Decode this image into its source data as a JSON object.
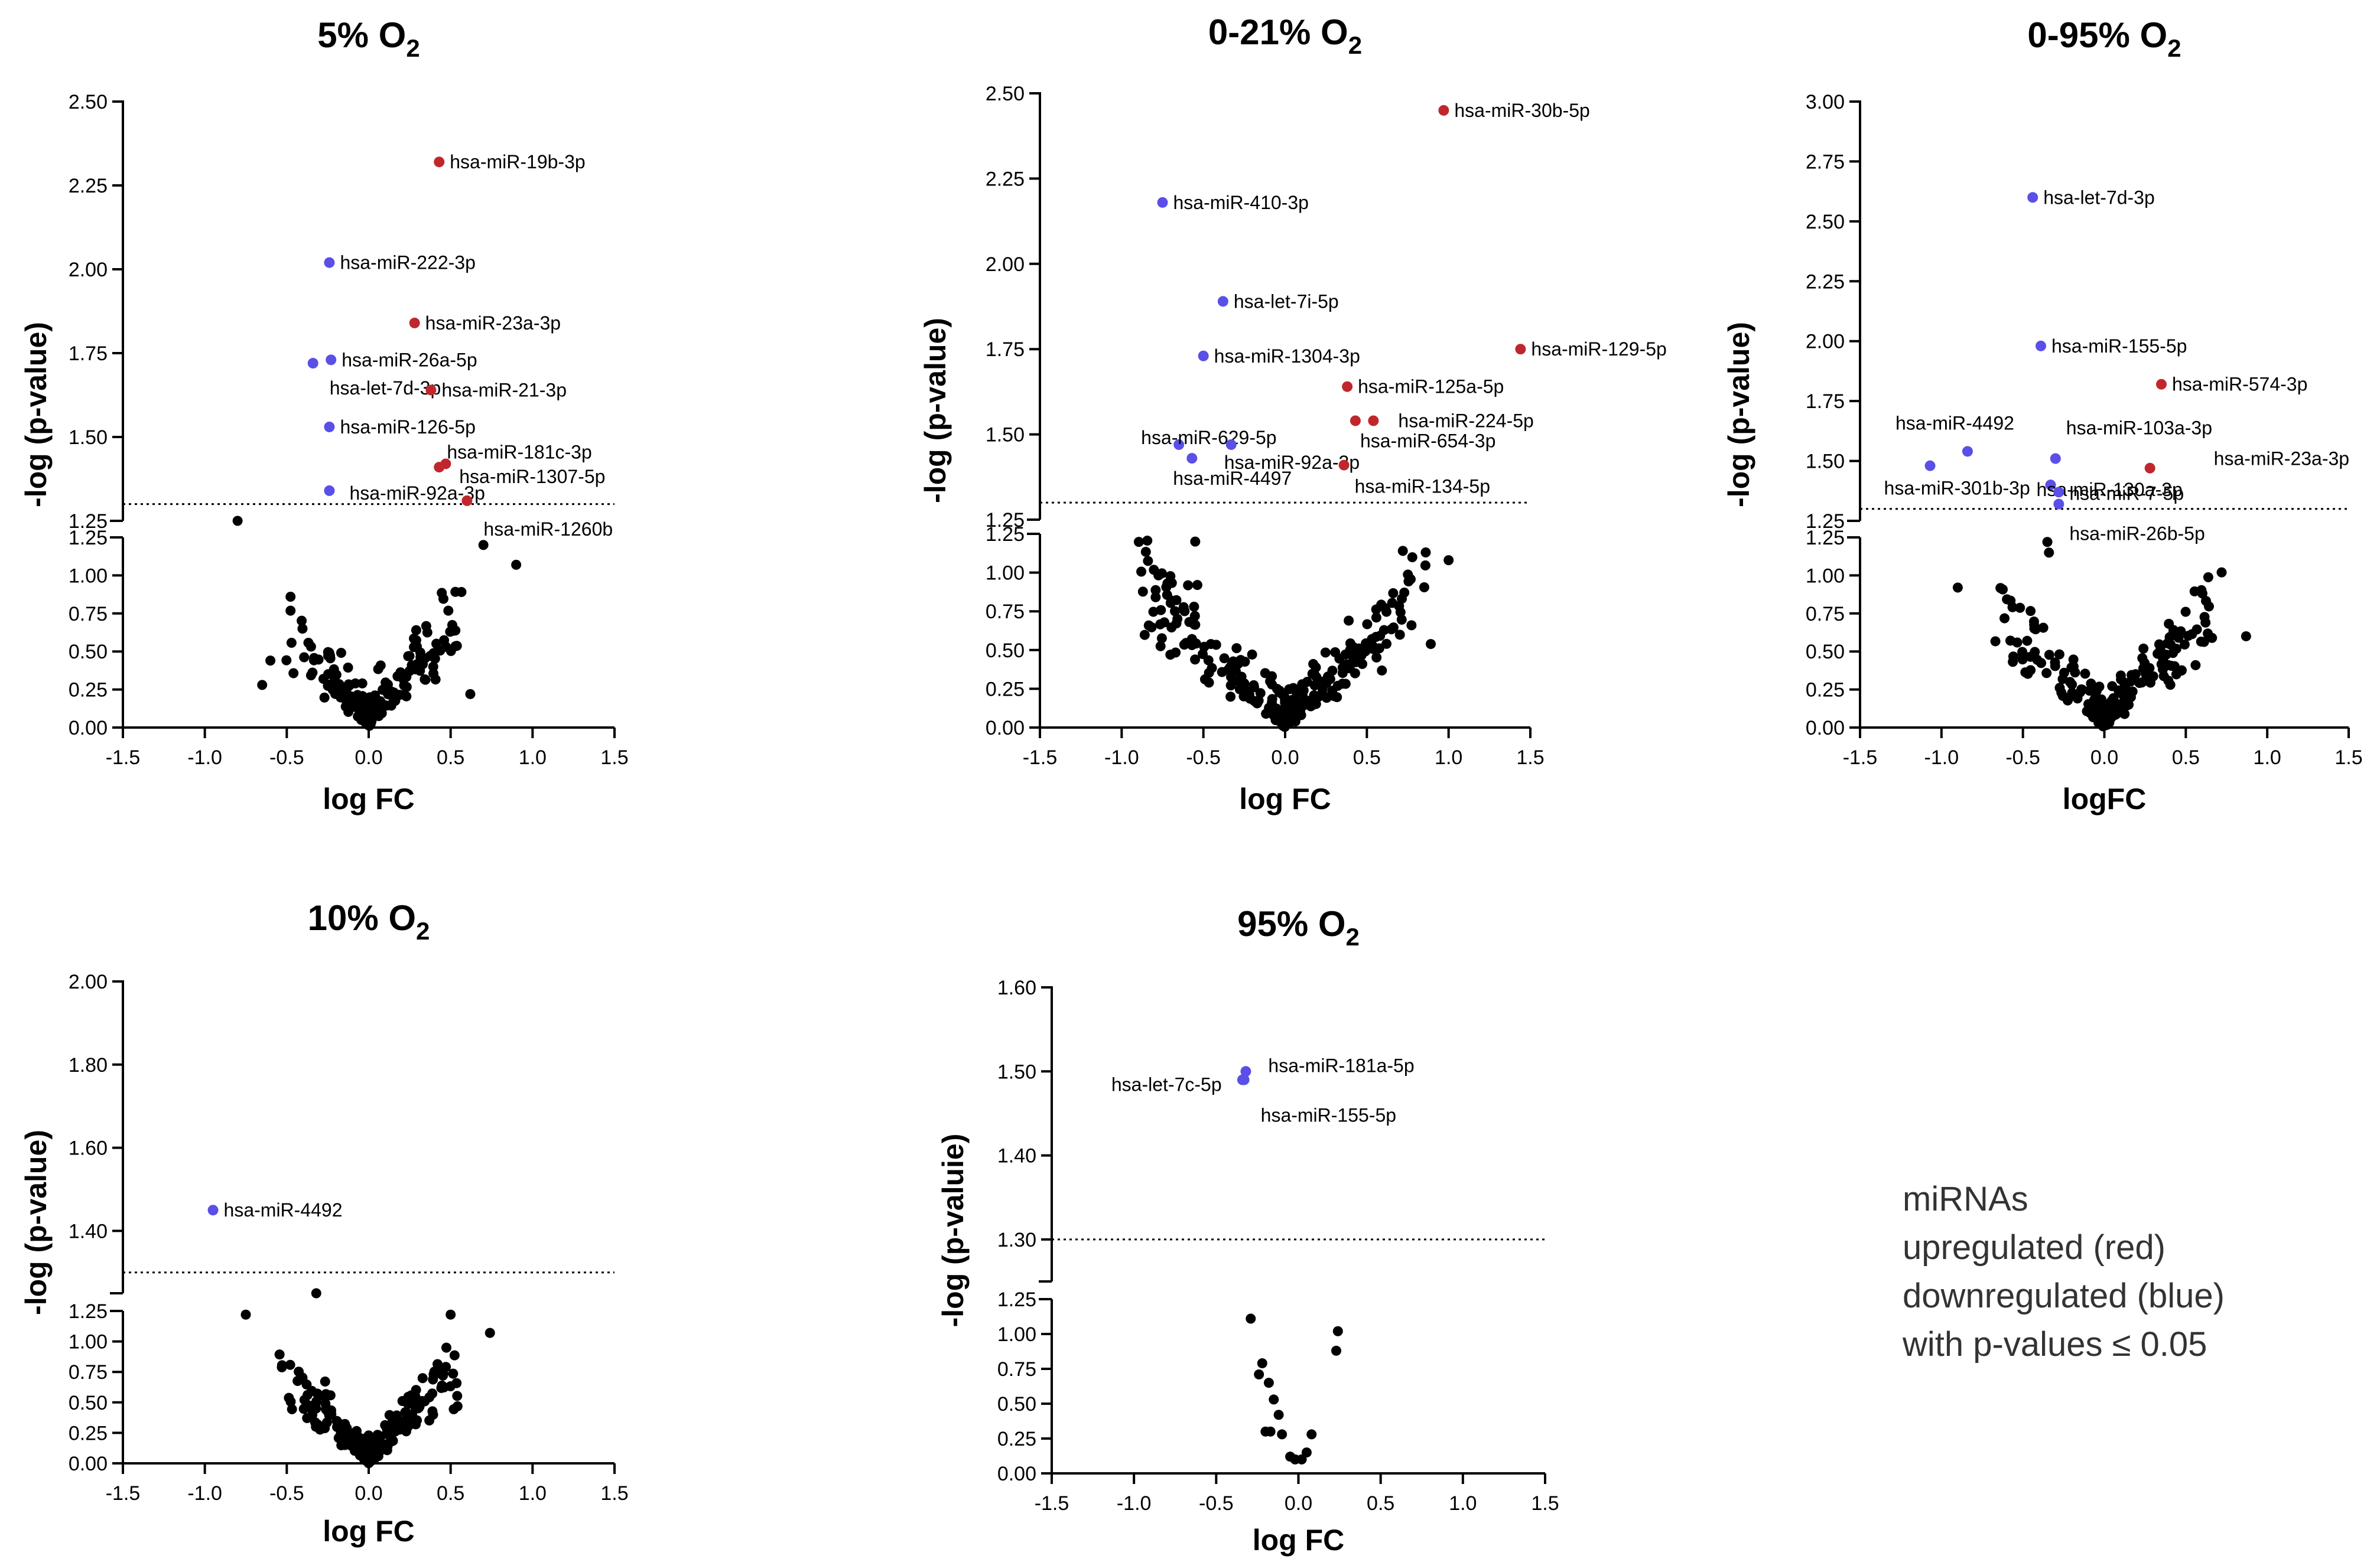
{
  "legend": {
    "lines": [
      "miRNAs",
      "upregulated (red)",
      "downregulated (blue)",
      "with p-values ≤ 0.05"
    ]
  },
  "colors": {
    "up": "#c0272d",
    "down": "#5a4fe6",
    "ns": "#000000"
  },
  "chart_data": [
    {
      "type": "scatter",
      "name": "5pct",
      "title": "5% O",
      "title_sub": "2",
      "xlabel": "log FC",
      "ylabel": "-log (p-value)",
      "xlim": [
        -1.5,
        1.5
      ],
      "xticks": [
        "-1.5",
        "-1.0",
        "-0.5",
        "0.0",
        "0.5",
        "1.0",
        "1.5"
      ],
      "upper_ylim": [
        1.25,
        2.5
      ],
      "upper_ticks": [
        "1.25",
        "1.50",
        "1.75",
        "2.00",
        "2.25",
        "2.50"
      ],
      "lower_ylim": [
        0,
        1.25
      ],
      "lower_ticks": [
        "0.00",
        "0.25",
        "0.50",
        "0.75",
        "1.00",
        "1.25"
      ],
      "threshold": 1.3,
      "labeled_points": [
        {
          "label": "hsa-miR-19b-3p",
          "x": 0.43,
          "y": 2.32,
          "reg": "up"
        },
        {
          "label": "hsa-miR-222-3p",
          "x": -0.24,
          "y": 2.02,
          "reg": "down"
        },
        {
          "label": "hsa-miR-23a-3p",
          "x": 0.28,
          "y": 1.84,
          "reg": "up"
        },
        {
          "label": "hsa-miR-26a-5p",
          "x": -0.23,
          "y": 1.73,
          "reg": "down"
        },
        {
          "label": "hsa-let-7d-3p",
          "x": -0.34,
          "y": 1.72,
          "reg": "down"
        },
        {
          "label": "hsa-miR-21-3p",
          "x": 0.38,
          "y": 1.64,
          "reg": "up"
        },
        {
          "label": "hsa-miR-126-5p",
          "x": -0.24,
          "y": 1.53,
          "reg": "down"
        },
        {
          "label": "hsa-miR-181c-3p",
          "x": 0.47,
          "y": 1.42,
          "reg": "up"
        },
        {
          "label": "hsa-miR-1307-5p",
          "x": 0.43,
          "y": 1.41,
          "reg": "up"
        },
        {
          "label": "hsa-miR-92a-3p",
          "x": -0.24,
          "y": 1.34,
          "reg": "down"
        },
        {
          "label": "hsa-miR-1260b",
          "x": 0.6,
          "y": 1.31,
          "reg": "up"
        }
      ],
      "gen": {
        "n": 170,
        "seed": 11,
        "xspread": 0.55,
        "slope": 1.25,
        "noise": 0.33,
        "ymax": 1.27,
        "skew": 0.05
      },
      "extra_points": [
        [
          -0.8,
          1.25
        ],
        [
          0.7,
          1.2
        ],
        [
          0.9,
          1.07
        ],
        [
          -0.65,
          0.28
        ],
        [
          0.62,
          0.22
        ],
        [
          -0.6,
          0.44
        ]
      ]
    },
    {
      "type": "scatter",
      "name": "0-21pct",
      "title": "0-21% O",
      "title_sub": "2",
      "xlabel": "log FC",
      "ylabel": "-log (p-value)",
      "xlim": [
        -1.5,
        1.5
      ],
      "xticks": [
        "-1.5",
        "-1.0",
        "-0.5",
        "0.0",
        "0.5",
        "1.0",
        "1.5"
      ],
      "upper_ylim": [
        1.25,
        2.5
      ],
      "upper_ticks": [
        "1.25",
        "1.50",
        "1.75",
        "2.00",
        "2.25",
        "2.50"
      ],
      "lower_ylim": [
        0,
        1.25
      ],
      "lower_ticks": [
        "0.00",
        "0.25",
        "0.50",
        "0.75",
        "1.00",
        "1.25"
      ],
      "threshold": 1.3,
      "labeled_points": [
        {
          "label": "hsa-miR-30b-5p",
          "x": 0.97,
          "y": 2.45,
          "reg": "up"
        },
        {
          "label": "hsa-miR-410-3p",
          "x": -0.75,
          "y": 2.18,
          "reg": "down"
        },
        {
          "label": "hsa-let-7i-5p",
          "x": -0.38,
          "y": 1.89,
          "reg": "down"
        },
        {
          "label": "hsa-miR-1304-3p",
          "x": -0.5,
          "y": 1.73,
          "reg": "down"
        },
        {
          "label": "hsa-miR-129-5p",
          "x": 1.44,
          "y": 1.75,
          "reg": "up"
        },
        {
          "label": "hsa-miR-125a-5p",
          "x": 0.38,
          "y": 1.64,
          "reg": "up"
        },
        {
          "label": "hsa-miR-224-5p",
          "x": 0.54,
          "y": 1.54,
          "reg": "up"
        },
        {
          "label": "hsa-miR-654-3p",
          "x": 0.43,
          "y": 1.54,
          "reg": "up"
        },
        {
          "label": "hsa-miR-629-5p",
          "x": -0.65,
          "y": 1.47,
          "reg": "down"
        },
        {
          "label": "hsa-miR-92a-3p",
          "x": -0.33,
          "y": 1.47,
          "reg": "down"
        },
        {
          "label": "hsa-miR-4497",
          "x": -0.57,
          "y": 1.43,
          "reg": "down"
        },
        {
          "label": "hsa-miR-134-5p",
          "x": 0.36,
          "y": 1.41,
          "reg": "up"
        }
      ],
      "gen": {
        "n": 260,
        "seed": 23,
        "xspread": 0.9,
        "slope": 1.05,
        "noise": 0.3,
        "ymax": 1.22,
        "skew": 0.08
      },
      "extra_points": [
        [
          -0.72,
          0.93
        ],
        [
          1.0,
          1.08
        ],
        [
          0.72,
          1.14
        ],
        [
          -0.55,
          1.2
        ],
        [
          0.86,
          1.13
        ]
      ]
    },
    {
      "type": "scatter",
      "name": "0-95pct",
      "title": "0-95% O",
      "title_sub": "2",
      "xlabel": "logFC",
      "ylabel": "-log (p-value)",
      "xlim": [
        -1.5,
        1.5
      ],
      "xticks": [
        "-1.5",
        "-1.0",
        "-0.5",
        "0.0",
        "0.5",
        "1.0",
        "1.5"
      ],
      "upper_ylim": [
        1.25,
        3.0
      ],
      "upper_ticks": [
        "1.25",
        "1.50",
        "1.75",
        "2.00",
        "2.25",
        "2.50",
        "2.75",
        "3.00"
      ],
      "lower_ylim": [
        0,
        1.25
      ],
      "lower_ticks": [
        "0.00",
        "0.25",
        "0.50",
        "0.75",
        "1.00",
        "1.25"
      ],
      "threshold": 1.3,
      "labeled_points": [
        {
          "label": "hsa-let-7d-3p",
          "x": -0.44,
          "y": 2.6,
          "reg": "down"
        },
        {
          "label": "hsa-miR-155-5p",
          "x": -0.39,
          "y": 1.98,
          "reg": "down"
        },
        {
          "label": "hsa-miR-574-3p",
          "x": 0.35,
          "y": 1.82,
          "reg": "up"
        },
        {
          "label": "hsa-miR-4492",
          "x": -0.84,
          "y": 1.54,
          "reg": "down"
        },
        {
          "label": "hsa-miR-103a-3p",
          "x": -0.3,
          "y": 1.51,
          "reg": "down"
        },
        {
          "label": "hsa-miR-301b-3p",
          "x": -1.07,
          "y": 1.48,
          "reg": "down"
        },
        {
          "label": "hsa-miR-130a-3p",
          "x": -0.33,
          "y": 1.4,
          "reg": "down"
        },
        {
          "label": "hsa-miR-23a-3p",
          "x": 0.28,
          "y": 1.47,
          "reg": "up"
        },
        {
          "label": "hsa-miR-7-5p",
          "x": -0.28,
          "y": 1.37,
          "reg": "down"
        },
        {
          "label": "hsa-miR-26b-5p",
          "x": -0.28,
          "y": 1.32,
          "reg": "down"
        }
      ],
      "gen": {
        "n": 200,
        "seed": 37,
        "xspread": 0.65,
        "slope": 1.2,
        "noise": 0.28,
        "ymax": 1.2,
        "skew": -0.08
      },
      "extra_points": [
        [
          -0.9,
          0.92
        ],
        [
          0.72,
          1.02
        ],
        [
          0.87,
          0.6
        ],
        [
          -0.35,
          1.22
        ],
        [
          -0.34,
          1.15
        ]
      ]
    },
    {
      "type": "scatter",
      "name": "10pct",
      "title": "10% O",
      "title_sub": "2",
      "xlabel": "log FC",
      "ylabel": "-log (p-value)",
      "xlim": [
        -1.5,
        1.5
      ],
      "xticks": [
        "-1.5",
        "-1.0",
        "-0.5",
        "0.0",
        "0.5",
        "1.0",
        "1.5"
      ],
      "upper_ylim": [
        1.25,
        2.0
      ],
      "upper_ticks": [
        "1.40",
        "1.60",
        "1.80",
        "2.00"
      ],
      "lower_ylim": [
        0,
        1.25
      ],
      "lower_ticks": [
        "0.00",
        "0.25",
        "0.50",
        "0.75",
        "1.00",
        "1.25"
      ],
      "threshold": 1.3,
      "labeled_points": [
        {
          "label": "hsa-miR-4492",
          "x": -0.95,
          "y": 1.45,
          "reg": "down"
        }
      ],
      "gen": {
        "n": 210,
        "seed": 51,
        "xspread": 0.55,
        "slope": 1.45,
        "noise": 0.25,
        "ymax": 1.2,
        "skew": 0.0
      },
      "extra_points": [
        [
          -0.75,
          1.22
        ],
        [
          0.74,
          1.07
        ],
        [
          -0.32,
          1.25
        ],
        [
          0.5,
          1.22
        ]
      ]
    },
    {
      "type": "scatter",
      "name": "95pct",
      "title": "95% O",
      "title_sub": "2",
      "xlabel": "log FC",
      "ylabel": "-log (p-valuie)",
      "xlim": [
        -1.5,
        1.5
      ],
      "xticks": [
        "-1.5",
        "-1.0",
        "-0.5",
        "0.0",
        "0.5",
        "1.0",
        "1.5"
      ],
      "upper_ylim": [
        1.25,
        1.6
      ],
      "upper_ticks": [
        "1.30",
        "1.40",
        "1.50",
        "1.60"
      ],
      "lower_ylim": [
        0,
        1.25
      ],
      "lower_ticks": [
        "0.00",
        "0.25",
        "0.50",
        "0.75",
        "1.00",
        "1.25"
      ],
      "threshold": 1.3,
      "labeled_points": [
        {
          "label": "hsa-let-7c-5p",
          "x": -0.34,
          "y": 1.49,
          "reg": "down"
        },
        {
          "label": "hsa-miR-181a-5p",
          "x": -0.32,
          "y": 1.5,
          "reg": "down"
        },
        {
          "label": "hsa-miR-155-5p",
          "x": -0.33,
          "y": 1.49,
          "reg": "down"
        }
      ],
      "points": [
        [
          -0.29,
          1.11
        ],
        [
          -0.22,
          0.79
        ],
        [
          -0.24,
          0.71
        ],
        [
          -0.18,
          0.65
        ],
        [
          -0.15,
          0.53
        ],
        [
          -0.12,
          0.42
        ],
        [
          -0.2,
          0.3
        ],
        [
          -0.17,
          0.3
        ],
        [
          -0.1,
          0.28
        ],
        [
          -0.05,
          0.12
        ],
        [
          -0.02,
          0.1
        ],
        [
          0.02,
          0.1
        ],
        [
          0.05,
          0.15
        ],
        [
          0.08,
          0.28
        ],
        [
          0.24,
          1.02
        ],
        [
          0.23,
          0.88
        ]
      ]
    }
  ]
}
